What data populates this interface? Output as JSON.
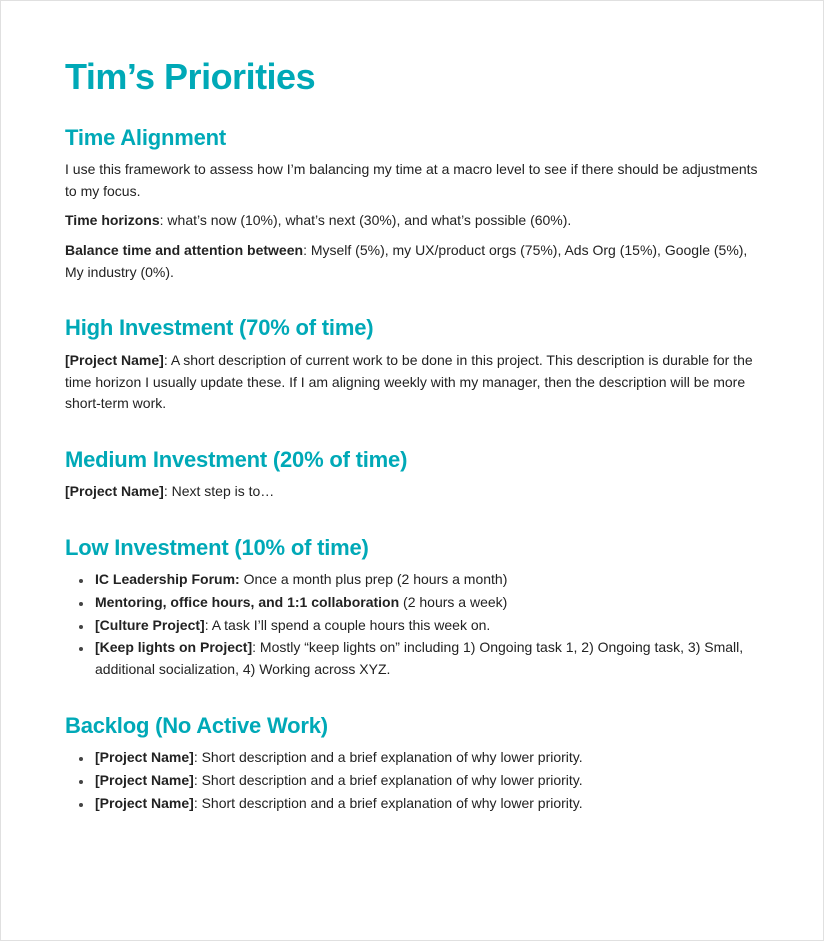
{
  "colors": {
    "accent": "#00a9b7",
    "text": "#222222",
    "background": "#ffffff",
    "border": "#e0e0e0"
  },
  "font": {
    "h1_size_pt": 27,
    "h2_size_pt": 17,
    "body_size_pt": 11,
    "family": "sans-serif",
    "heading_weight": 800,
    "bold_weight": 700
  },
  "doc": {
    "title": "Tim’s Priorities",
    "sections": {
      "time_alignment": {
        "heading": "Time Alignment",
        "intro": "I use this framework to assess how I’m balancing my time at a macro level to see if there should be adjustments to my focus.",
        "horizons_label": "Time horizons",
        "horizons_text": ": what’s now (10%), what’s next (30%), and what’s possible (60%).",
        "balance_label": "Balance time and attention between",
        "balance_text": ": Myself (5%), my UX/product orgs (75%), Ads Org (15%), Google (5%), My industry (0%)."
      },
      "high": {
        "heading": "High Investment (70% of time)",
        "item_label": "[Project Name]",
        "item_text": ": A short description of current work to be done in this project. This description is durable for the time horizon I usually update these. If I am aligning weekly with my manager, then the description will be more short-term work."
      },
      "medium": {
        "heading": "Medium Investment (20% of time)",
        "item_label": "[Project Name]",
        "item_text": ": Next step is to…"
      },
      "low": {
        "heading": "Low Investment (10% of time)",
        "items": [
          {
            "label": "IC Leadership Forum:",
            "text": " Once a month plus prep (2 hours a month)"
          },
          {
            "label": "Mentoring, office hours, and 1:1 collaboration",
            "text": " (2 hours a week)"
          },
          {
            "label": "[Culture Project]",
            "text": ": A task I’ll spend a couple hours this week on."
          },
          {
            "label": "[Keep lights on Project]",
            "text": ": Mostly “keep lights on” including 1) Ongoing task 1, 2) Ongoing task, 3) Small, additional socialization, 4) Working across XYZ."
          }
        ]
      },
      "backlog": {
        "heading": "Backlog (No Active Work)",
        "items": [
          {
            "label": "[Project Name]",
            "text": ": Short description and a brief explanation of why lower priority."
          },
          {
            "label": "[Project Name]",
            "text": ": Short description and a brief explanation of why lower priority."
          },
          {
            "label": "[Project Name]",
            "text": ": Short description and a brief explanation of why lower priority."
          }
        ]
      }
    }
  }
}
